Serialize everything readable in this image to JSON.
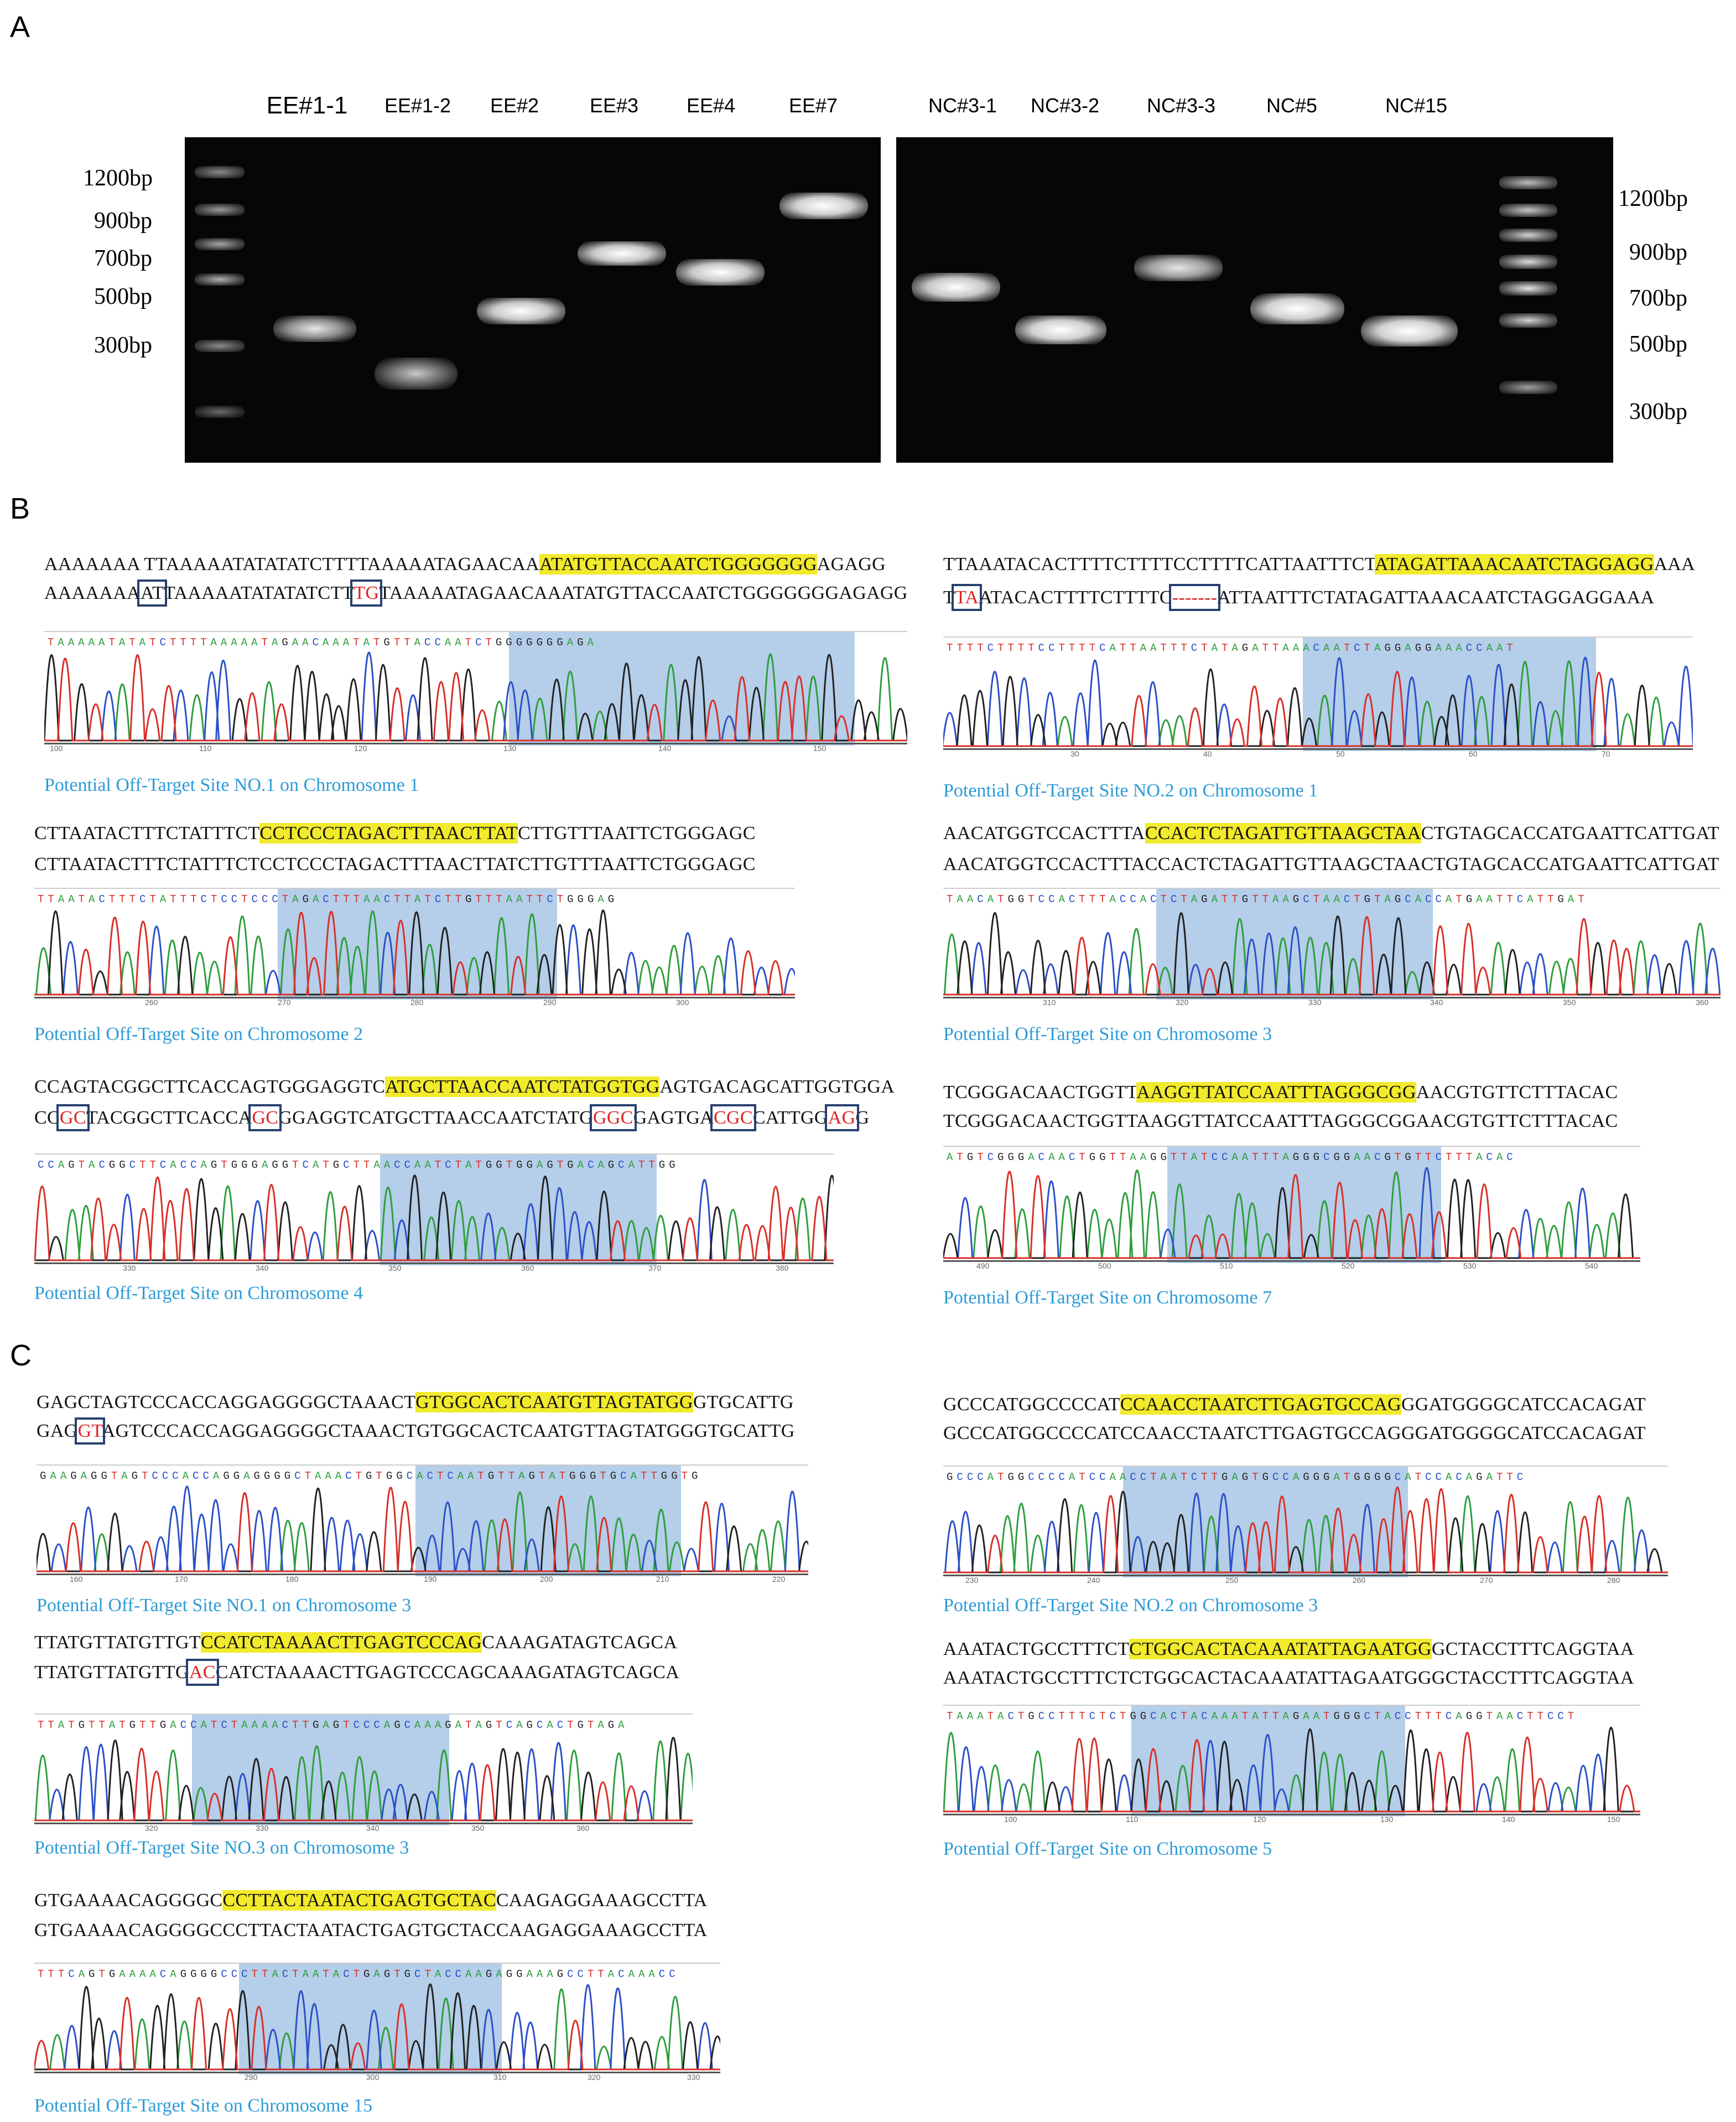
{
  "panels": {
    "a": "A",
    "b": "B",
    "c": "C"
  },
  "gel": {
    "left_lanes": [
      "EE#1-1",
      "EE#1-2",
      "EE#2",
      "EE#3",
      "EE#4",
      "EE#7"
    ],
    "right_lanes": [
      "NC#3-1",
      "NC#3-2",
      "NC#3-3",
      "NC#5",
      "NC#15"
    ],
    "left_markers": [
      "1200bp",
      "900bp",
      "700bp",
      "500bp",
      "300bp"
    ],
    "right_markers": [
      "1200bp",
      "900bp",
      "700bp",
      "500bp",
      "300bp"
    ]
  },
  "b_sites": [
    {
      "caption": "Potential Off-Target Site NO.1 on Chromosome 1",
      "ref": [
        "AAAAAAA  TTAAAAATATATATCTTTTAAAAATAGAACAA",
        "ATATGTTACCAATCTGGGGGGG",
        "AGAGG"
      ],
      "seq": [
        "AAAAAAA",
        "AT",
        "TAAAAATATATATCTT",
        "TG",
        "TAAAAATAGAACAAATATGTTACCAATCTGGGGGGGAGAGG"
      ],
      "bases": "TAAAAATATATCTTTTAAAAATAGAACAAATATGTTACCAATCTGGGGGGGAGA",
      "ticks": [
        "100",
        "110",
        "120",
        "130",
        "140",
        "150"
      ]
    },
    {
      "caption": "Potential Off-Target Site NO.2 on Chromosome 1",
      "ref": [
        "TTAAATACACTTTTCTTTTCCTTTTCATTAATTTCT",
        "ATAGATTAAACAATCTAGGAGG",
        "AAA"
      ],
      "seq": [
        "T",
        "TA",
        "ATACACTTTTCTTTTC",
        "-------",
        "ATTAATTTCTATAGATTAAACAATCTAGGAGGAAA"
      ],
      "bases": "TTTTCTTTTCCTTTTCATTAATTTCTATAGATTAAACAATCTAGGAGGAAACCAAT",
      "ticks": [
        "30",
        "40",
        "50",
        "60",
        "70"
      ]
    },
    {
      "caption": "Potential Off-Target Site on Chromosome 2",
      "ref": [
        "CTTAATACTTTCTATTTCT",
        "CCTCCCTAGACTTTAACTTAT",
        "CTTGTTTAATTCTGGGAGC"
      ],
      "seq": "CTTAATACTTTCTATTTCTCCTCCCTAGACTTTAACTTATCTTGTTTAATTCTGGGAGC",
      "bases": "TTAATACTTTCTATTTCTCCTCCCTAGACTTTAACTTATCTTGTTTAATTCTGGGAG",
      "ticks": [
        "260",
        "270",
        "280",
        "290",
        "300"
      ]
    },
    {
      "caption": "Potential Off-Target Site on Chromosome 3",
      "ref": [
        "AACATGGTCCACTTTA",
        "CCACTCTAGATTGTTAAGCTAA",
        "CTGTAGCACCATGAATTCATTGAT"
      ],
      "seq": "AACATGGTCCACTTTACCACTCTAGATTGTTAAGCTAACTGTAGCACCATGAATTCATTGAT",
      "bases": "TAACATGGTCCACTTTACCACTCTAGATTGTTAAGCTAACTGTAGCACCATGAATTCATTGAT",
      "ticks": [
        "310",
        "320",
        "330",
        "340",
        "350",
        "360"
      ]
    },
    {
      "caption": "Potential Off-Target Site on Chromosome 4",
      "ref": [
        "CCAGTACGGCTTCACCAGTGGGAGGTC",
        "ATGCTTAACCAATCTATGGTGG",
        "AGTGACAGCATTGGTGGA"
      ],
      "seq": [
        "CC",
        "GC",
        "TACGGCTTCACCA",
        "GC",
        "GGAGGTCATGCTTAACCAATCTATG",
        "GGC",
        "GAGTGA",
        "CGC",
        "CATTGG",
        "AG",
        "G"
      ],
      "bases": "CCAGTACGGCTTCACCAGTGGGAGGTCATGCTTAACCAATCTATGGTGGAGTGACAGCATTGG",
      "ticks": [
        "330",
        "340",
        "350",
        "360",
        "370",
        "380"
      ]
    },
    {
      "caption": "Potential Off-Target Site on Chromosome 7",
      "ref": [
        "TCGGGACAACTGGTT",
        "AAGGTTATCCAATTTAGGGCGG",
        "AACGTGTTCTTTACAC"
      ],
      "seq": "TCGGGACAACTGGTTAAGGTTATCCAATTTAGGGCGGAACGTGTTCTTTACAC",
      "bases": "ATGTCGGGACAACTGGTTAAGGTTATCCAATTTAGGGCGGAACGTGTTCTTTACAC",
      "ticks": [
        "490",
        "500",
        "510",
        "520",
        "530",
        "540"
      ]
    }
  ],
  "c_sites": [
    {
      "caption": "Potential Off-Target Site NO.1 on Chromosome 3",
      "ref": [
        "GAGCTAGTCCCACCAGGAGGGGCTAAACT",
        "GTGGCACTCAATGTTAGTATGG",
        "GTGCATTG"
      ],
      "seq": [
        "GAG",
        "GT",
        "AGTCCCACCAGGAGGGGCTAAACTGTGGCACTCAATGTTAGTATGGGTGCATTG"
      ],
      "bases": "GAAGAGGTAGTCCCACCAGGAGGGGCTAAACTGTGGCACTCAATGTTAGTATGGGTGCATTGGTG",
      "ticks": [
        "160",
        "170",
        "180",
        "190",
        "200",
        "210",
        "220"
      ]
    },
    {
      "caption": "Potential Off-Target Site NO.2 on Chromosome 3",
      "ref": [
        "GCCCATGGCCCCAT",
        "CCAACCTAATCTTGAGTGCCAG",
        "GGATGGGGCATCCACAGAT"
      ],
      "seq": "GCCCATGGCCCCATCCAACCTAATCTTGAGTGCCAGGGATGGGGCATCCACAGAT",
      "bases": "GCCCATGGCCCCATCCAACCTAATCTTGAGTGCCAGGGATGGGGCATCCACAGATTC",
      "ticks": [
        "230",
        "240",
        "250",
        "260",
        "270",
        "280"
      ]
    },
    {
      "caption": "Potential Off-Target Site NO.3 on Chromosome 3",
      "ref": [
        "TTATGTTATGTTGT",
        "CCATCTAAAACTTGAGTCCCAG",
        "CAAAGATAGTCAGCA"
      ],
      "seq": [
        "TTATGTTATGTTG",
        "AC",
        "CATCTAAAACTTGAGTCCCAGCAAAGATAGTCAGCA"
      ],
      "bases": "TTATGTTATGTTGACCATCTAAAACTTGAGTCCCAGCAAAGATAGTCAGCACTGTAGA",
      "ticks": [
        "320",
        "330",
        "340",
        "350",
        "360"
      ]
    },
    {
      "caption": "Potential Off-Target Site on Chromosome 5",
      "ref": [
        "AAATACTGCCTTTCT",
        "CTGGCACTACAAATATTAGAATGG",
        "GCTACCTTTCAGGTAA"
      ],
      "seq": "AAATACTGCCTTTCTCTGGCACTACAAATATTAGAATGGGCTACCTTTCAGGTAA",
      "bases": "TAAATACTGCCTTTCTCTGGCACTACAAATATTAGAATGGGCTACCTTTCAGGTAACTTCCT",
      "ticks": [
        "100",
        "110",
        "120",
        "130",
        "140",
        "150"
      ]
    },
    {
      "caption": "Potential Off-Target Site on Chromosome 15",
      "ref": [
        "GTGAAAACAGGGGC",
        "CCTTACTAATACTGAGTGCTAC",
        "CAAGAGGAAAGCCTTA"
      ],
      "seq": "GTGAAAACAGGGGCCCTTACTAATACTGAGTGCTACCAAGAGGAAAGCCTTA",
      "bases": "TTTCAGTGAAAACAGGGGCCCTTACTAATACTGAGTGCTACCAAGAGGAAAGCCTTACAAACC",
      "ticks": [
        "290",
        "300",
        "310",
        "320",
        "330"
      ]
    }
  ]
}
